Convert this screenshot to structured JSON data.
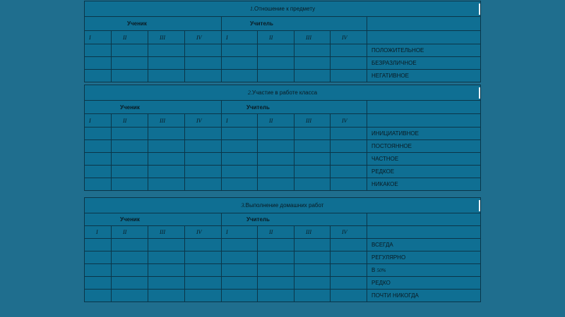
{
  "colors": {
    "background": "#1f6e8e",
    "table": "#0f6f93",
    "border": "#0b3548"
  },
  "roman": [
    "I",
    "II",
    "III",
    "IV",
    "I",
    "II",
    "III",
    "IV"
  ],
  "groups": {
    "student": "Ученик",
    "teacher": "Учитель"
  },
  "tables": [
    {
      "number": "1.",
      "title": "Отношение к предмету",
      "rows": [
        "ПОЛОЖИТЕЛЬНОЕ",
        "БЕЗРАЗЛИЧНОЕ",
        "НЕГАТИВНОЕ"
      ]
    },
    {
      "number": "2.",
      "title": "Участие в работе класса",
      "rows": [
        "ИНИЦИАТИВНОЕ",
        "ПОСТОЯННОЕ",
        "ЧАСТНОЕ",
        "РЕДКОЕ",
        "НИКАКОЕ"
      ]
    },
    {
      "number": "3.",
      "title": "Выполнение домашних работ",
      "rows": [
        "ВСЕГДА",
        "РЕГУЛЯРНО",
        "В 50%",
        "РЕДКО",
        "ПОЧТИ НИКОГДА"
      ]
    }
  ]
}
